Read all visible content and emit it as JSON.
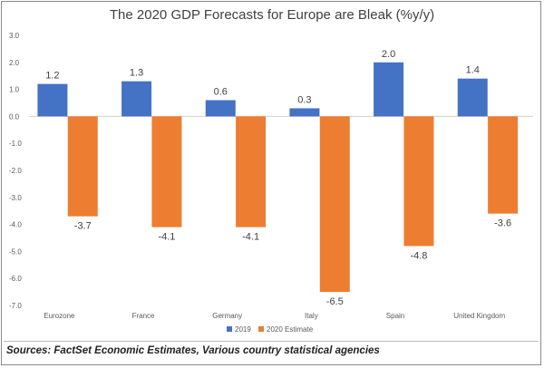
{
  "chart_data": {
    "type": "bar",
    "title": "The 2020 GDP Forecasts for Europe are Bleak (%y/y)",
    "categories": [
      "Eurozone",
      "France",
      "Germany",
      "Italy",
      "Spain",
      "United Kingdom"
    ],
    "series": [
      {
        "name": "2019",
        "color": "#4472C4",
        "values": [
          1.2,
          1.3,
          0.6,
          0.3,
          2.0,
          1.4
        ]
      },
      {
        "name": "2020 Estimate",
        "color": "#ED7D31",
        "values": [
          -3.7,
          -4.1,
          -4.1,
          -6.5,
          -4.8,
          -3.6
        ]
      }
    ],
    "ylim": [
      -7.0,
      3.0
    ],
    "yticks": [
      "3.0",
      "2.0",
      "1.0",
      "0.0",
      "-1.0",
      "-2.0",
      "-3.0",
      "-4.0",
      "-5.0",
      "-6.0",
      "-7.0"
    ],
    "grid": false,
    "legend_position": "bottom"
  },
  "source_note": "Sources: FactSet Economic Estimates, Various country statistical agencies"
}
